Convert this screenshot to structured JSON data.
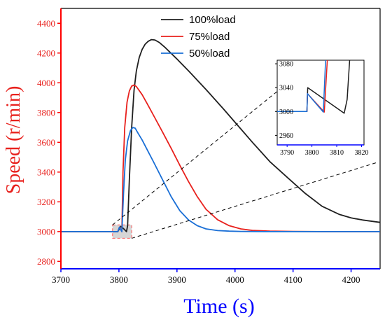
{
  "chart_data": [
    {
      "type": "line",
      "xlabel": "Time (s)",
      "ylabel": "Speed (r/min)",
      "xlim": [
        3700,
        4250
      ],
      "ylim": [
        2750,
        4500
      ],
      "xticks": [
        3700,
        3800,
        3900,
        4000,
        4100,
        4200
      ],
      "yticks": [
        2800,
        3000,
        3200,
        3400,
        3600,
        3800,
        4000,
        4200,
        4400
      ],
      "legend": "top-right",
      "grid": false,
      "colors": {
        "xaxis": "#0000ff",
        "yaxis": "#ff0000",
        "xlabel": "#0000ff",
        "ylabel": "#e8211d"
      },
      "series": [
        {
          "name": "100%load",
          "color": "#1f1f1f",
          "x": [
            3700,
            3798,
            3803,
            3808,
            3813,
            3815,
            3818,
            3822,
            3826,
            3830,
            3835,
            3840,
            3845,
            3850,
            3856,
            3862,
            3870,
            3880,
            3900,
            3920,
            3950,
            3980,
            4000,
            4030,
            4060,
            4090,
            4120,
            4150,
            4180,
            4200,
            4220,
            4250
          ],
          "y": [
            3000,
            3000,
            3035,
            3020,
            3000,
            3040,
            3350,
            3700,
            3950,
            4080,
            4170,
            4225,
            4258,
            4278,
            4290,
            4288,
            4270,
            4236,
            4160,
            4080,
            3955,
            3825,
            3735,
            3600,
            3470,
            3365,
            3260,
            3170,
            3115,
            3092,
            3078,
            3062
          ]
        },
        {
          "name": "75%load",
          "color": "#e8211d",
          "x": [
            3700,
            3798,
            3801,
            3803,
            3805,
            3807,
            3810,
            3814,
            3818,
            3822,
            3826,
            3830,
            3840,
            3850,
            3860,
            3875,
            3890,
            3905,
            3920,
            3935,
            3950,
            3970,
            3990,
            4010,
            4030,
            4060,
            4100,
            4150,
            4200,
            4250
          ],
          "y": [
            3000,
            3000,
            3030,
            3015,
            3000,
            3400,
            3700,
            3870,
            3945,
            3978,
            3985,
            3975,
            3920,
            3850,
            3778,
            3670,
            3560,
            3445,
            3335,
            3235,
            3150,
            3080,
            3040,
            3018,
            3008,
            3003,
            3001,
            3000,
            3000,
            3000
          ]
        },
        {
          "name": "50%load",
          "color": "#1a6fd6",
          "x": [
            3700,
            3798,
            3801,
            3803,
            3805,
            3808,
            3811,
            3815,
            3820,
            3824,
            3828,
            3832,
            3840,
            3850,
            3860,
            3875,
            3890,
            3905,
            3920,
            3935,
            3950,
            3970,
            3990,
            4010,
            4050,
            4100,
            4150,
            4200,
            4250
          ],
          "y": [
            3000,
            3000,
            3030,
            3014,
            3000,
            3260,
            3480,
            3610,
            3680,
            3700,
            3695,
            3668,
            3615,
            3540,
            3465,
            3350,
            3235,
            3140,
            3078,
            3040,
            3018,
            3007,
            3003,
            3001,
            3000,
            3000,
            3000,
            3000,
            3000
          ]
        }
      ]
    },
    {
      "type": "line",
      "role": "inset-zoom",
      "xlim": [
        3786,
        3821
      ],
      "ylim": [
        2944,
        3086
      ],
      "xticks": [
        3790,
        3800,
        3810,
        3820
      ],
      "yticks": [
        2960,
        3000,
        3040,
        3080
      ],
      "colors": {
        "xaxis": "#0000ff",
        "yaxis": "#000000"
      },
      "series": [
        {
          "name": "100%load",
          "color": "#1f1f1f",
          "x": [
            3786,
            3798,
            3798.3,
            3813,
            3814.2,
            3815.2
          ],
          "y": [
            3000,
            3000,
            3040,
            2997,
            3020,
            3086
          ]
        },
        {
          "name": "75%load",
          "color": "#e8211d",
          "x": [
            3786,
            3798,
            3798.2,
            3805,
            3806.2
          ],
          "y": [
            3000,
            3000,
            3030,
            2999,
            3086
          ]
        },
        {
          "name": "50%load",
          "color": "#1a6fd6",
          "x": [
            3786,
            3798,
            3798.2,
            3804.6,
            3805.5
          ],
          "y": [
            3000,
            3000,
            3030,
            2999,
            3086
          ]
        }
      ]
    }
  ]
}
